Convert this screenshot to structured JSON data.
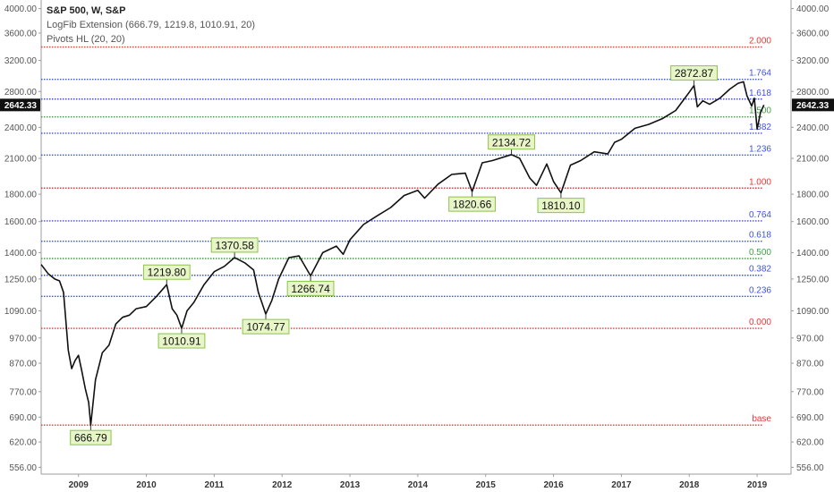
{
  "header": {
    "title": "S&P 500, W, S&P",
    "indicator_1": "LogFib Extension (666.79, 1219.8, 1010.91, 20)",
    "indicator_2": "Pivots HL (20, 20)"
  },
  "chart_data": {
    "type": "line",
    "log_scale": true,
    "grid": false,
    "ylim": [
      540,
      4150
    ],
    "xlim": [
      2008.45,
      2019.5
    ],
    "y_ticks": [
      "4000.00",
      "3600.00",
      "3200.00",
      "2800.00",
      "2400.00",
      "2100.00",
      "1800.00",
      "1600.00",
      "1400.00",
      "1250.00",
      "1090.00",
      "970.00",
      "870.00",
      "770.00",
      "690.00",
      "620.00",
      "556.00"
    ],
    "x_ticks": [
      "2009",
      "2010",
      "2011",
      "2012",
      "2013",
      "2014",
      "2015",
      "2016",
      "2017",
      "2018",
      "2019"
    ],
    "current_price": "2642.33",
    "fib_levels": [
      {
        "label": "2.000",
        "value": 3390,
        "color": "#e53935"
      },
      {
        "label": "1.764",
        "value": 2950,
        "color": "#3f51e5"
      },
      {
        "label": "1.618",
        "value": 2710,
        "color": "#3f51e5"
      },
      {
        "label": "1.500",
        "value": 2510,
        "color": "#43a047"
      },
      {
        "label": "1.382",
        "value": 2340,
        "color": "#3f51e5"
      },
      {
        "label": "1.236",
        "value": 2130,
        "color": "#3f51e5"
      },
      {
        "label": "1.000",
        "value": 1848,
        "color": "#e53935"
      },
      {
        "label": "0.764",
        "value": 1605,
        "color": "#3f51e5"
      },
      {
        "label": "0.618",
        "value": 1470,
        "color": "#3f51e5"
      },
      {
        "label": "0.500",
        "value": 1365,
        "color": "#43a047"
      },
      {
        "label": "0.382",
        "value": 1270,
        "color": "#3f51e5"
      },
      {
        "label": "0.236",
        "value": 1160,
        "color": "#3f51e5"
      },
      {
        "label": "0.000",
        "value": 1010.91,
        "color": "#e53935"
      },
      {
        "label": "base",
        "value": 666.79,
        "color": "#e53935"
      }
    ],
    "pivots": [
      {
        "label": "666.79",
        "x": 2009.18,
        "y": 666.79,
        "type": "low"
      },
      {
        "label": "1219.80",
        "x": 2010.3,
        "y": 1219.8,
        "type": "high"
      },
      {
        "label": "1010.91",
        "x": 2010.52,
        "y": 1010.91,
        "type": "low"
      },
      {
        "label": "1370.58",
        "x": 2011.3,
        "y": 1370.58,
        "type": "high"
      },
      {
        "label": "1074.77",
        "x": 2011.76,
        "y": 1074.77,
        "type": "low"
      },
      {
        "label": "1266.74",
        "x": 2012.42,
        "y": 1266.74,
        "type": "low"
      },
      {
        "label": "1820.66",
        "x": 2014.8,
        "y": 1820.66,
        "type": "low"
      },
      {
        "label": "2134.72",
        "x": 2015.38,
        "y": 2134.72,
        "type": "high"
      },
      {
        "label": "1810.10",
        "x": 2016.11,
        "y": 1810.1,
        "type": "low"
      },
      {
        "label": "2872.87",
        "x": 2018.07,
        "y": 2872.87,
        "type": "high"
      }
    ],
    "series": [
      {
        "x": [
          2008.45,
          2008.55,
          2008.65,
          2008.72,
          2008.78,
          2008.85,
          2008.9,
          2008.95,
          2009.0,
          2009.05,
          2009.1,
          2009.15,
          2009.18,
          2009.25,
          2009.35,
          2009.45,
          2009.55,
          2009.65,
          2009.75,
          2009.85,
          2010.0,
          2010.15,
          2010.3,
          2010.38,
          2010.45,
          2010.52,
          2010.6,
          2010.7,
          2010.85,
          2011.0,
          2011.15,
          2011.3,
          2011.45,
          2011.58,
          2011.65,
          2011.76,
          2011.85,
          2011.95,
          2012.1,
          2012.25,
          2012.42,
          2012.6,
          2012.8,
          2012.9,
          2013.0,
          2013.2,
          2013.4,
          2013.6,
          2013.8,
          2014.0,
          2014.1,
          2014.3,
          2014.5,
          2014.7,
          2014.8,
          2014.95,
          2015.1,
          2015.38,
          2015.5,
          2015.65,
          2015.75,
          2015.9,
          2016.0,
          2016.11,
          2016.25,
          2016.4,
          2016.6,
          2016.8,
          2016.9,
          2017.0,
          2017.2,
          2017.4,
          2017.6,
          2017.8,
          2018.0,
          2018.07,
          2018.12,
          2018.2,
          2018.3,
          2018.45,
          2018.6,
          2018.72,
          2018.8,
          2018.85,
          2018.92,
          2018.96,
          2019.0,
          2019.05,
          2019.1
        ],
        "values": [
          1330,
          1280,
          1250,
          1240,
          1180,
          920,
          850,
          880,
          900,
          840,
          780,
          735,
          666.79,
          810,
          910,
          940,
          1030,
          1060,
          1070,
          1100,
          1110,
          1160,
          1219.8,
          1100,
          1070,
          1010.91,
          1090,
          1130,
          1220,
          1290,
          1320,
          1370.58,
          1340,
          1300,
          1180,
          1074.77,
          1140,
          1250,
          1370,
          1380,
          1266.74,
          1400,
          1440,
          1390,
          1480,
          1580,
          1640,
          1700,
          1790,
          1830,
          1770,
          1880,
          1960,
          1970,
          1820.66,
          2060,
          2080,
          2134.72,
          2100,
          1930,
          1870,
          2050,
          1900,
          1810.1,
          2040,
          2080,
          2160,
          2140,
          2250,
          2280,
          2390,
          2430,
          2490,
          2580,
          2790,
          2872.87,
          2620,
          2690,
          2650,
          2720,
          2830,
          2900,
          2920,
          2750,
          2630,
          2720,
          2380,
          2560,
          2642.33
        ]
      }
    ]
  }
}
